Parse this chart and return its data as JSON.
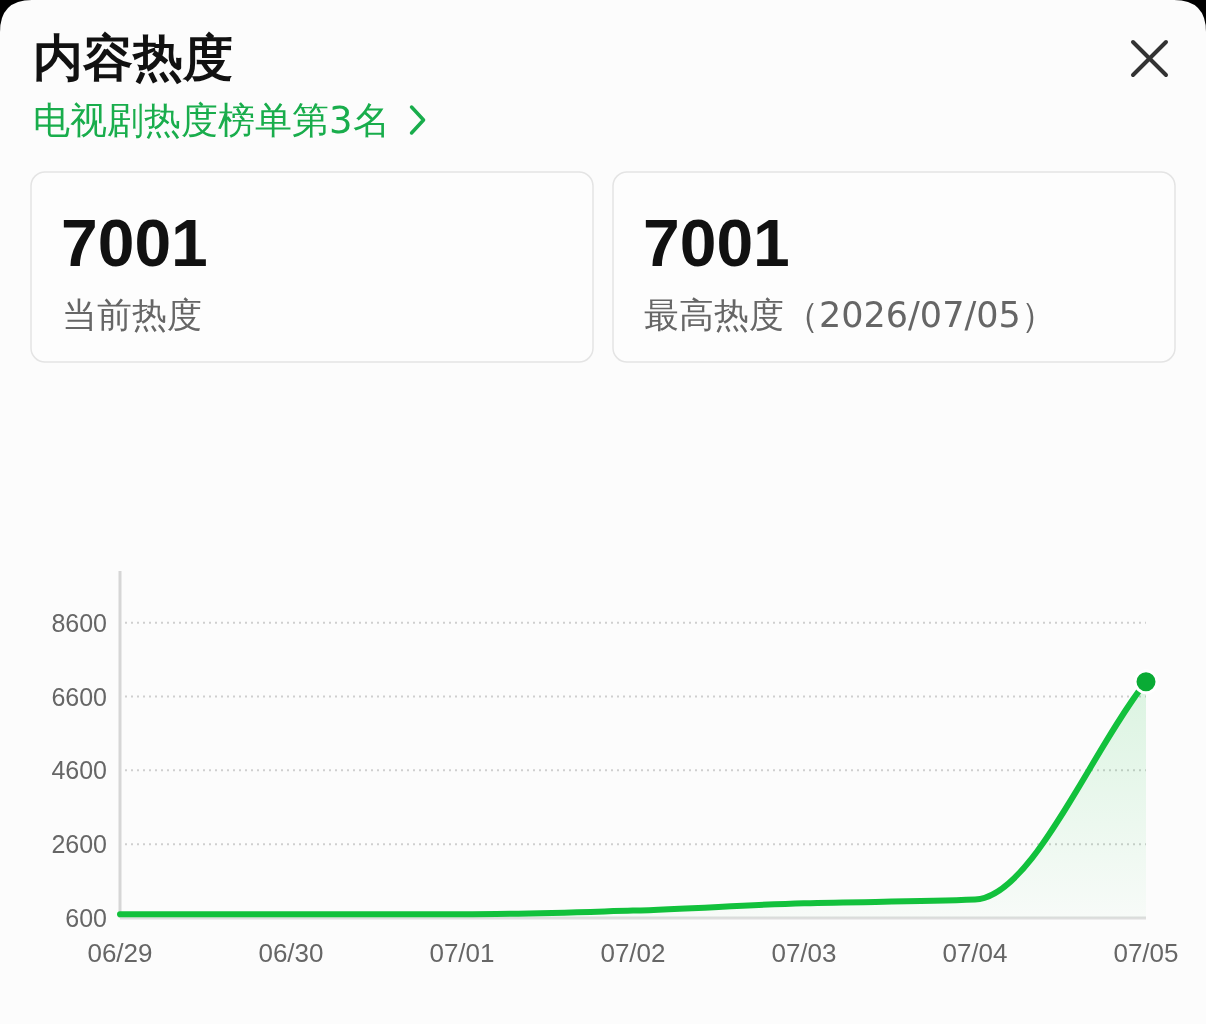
{
  "chart_data": {
    "type": "area",
    "title": "内容热度",
    "subtitle": "电视剧热度榜单第3名",
    "annotations": [
      "7001",
      "当前热度",
      "7001",
      "最高热度（2026/07/05）"
    ],
    "categories": [
      "06/29",
      "06/30",
      "07/01",
      "07/02",
      "07/03",
      "07/04",
      "07/05"
    ],
    "series": [
      {
        "color": "#12c13c",
        "values": [
          700,
          700,
          700,
          800,
          1000,
          1100,
          7001
        ]
      },
      {
        "type": "scatter",
        "color": "#0aab35",
        "marker": "circle",
        "values": [
          null,
          null,
          null,
          null,
          null,
          null,
          7001
        ]
      }
    ],
    "ylim": [
      600,
      10000
    ],
    "yticks": [
      600,
      2600,
      4600,
      6600,
      8600
    ],
    "grid": "y"
  }
}
